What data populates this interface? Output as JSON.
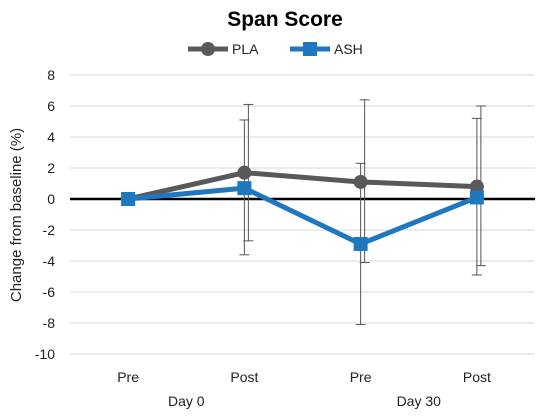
{
  "chart_data": {
    "type": "line",
    "title": "Span Score",
    "ylabel": "Change from baseline (%)",
    "xlabel": "",
    "ylim": [
      -10,
      8
    ],
    "ystep": 2,
    "grid": true,
    "legend_position": "top",
    "categories": [
      "Pre",
      "Post",
      "Pre",
      "Post"
    ],
    "groups": [
      {
        "label": "Day 0",
        "span": [
          0,
          1
        ]
      },
      {
        "label": "Day 30",
        "span": [
          2,
          3
        ]
      }
    ],
    "series": [
      {
        "name": "PLA",
        "color": "#595959",
        "marker": "circle",
        "values": [
          0,
          1.7,
          1.1,
          0.8
        ],
        "error_low": [
          0,
          -2.7,
          -4.1,
          -4.3
        ],
        "error_high": [
          0,
          6.1,
          6.4,
          6.0
        ]
      },
      {
        "name": "ASH",
        "color": "#1f77c0",
        "marker": "square",
        "values": [
          0,
          0.7,
          -2.9,
          0.1
        ],
        "error_low": [
          0,
          -3.6,
          -8.1,
          -4.9
        ],
        "error_high": [
          0,
          5.1,
          2.3,
          5.2
        ]
      }
    ]
  }
}
